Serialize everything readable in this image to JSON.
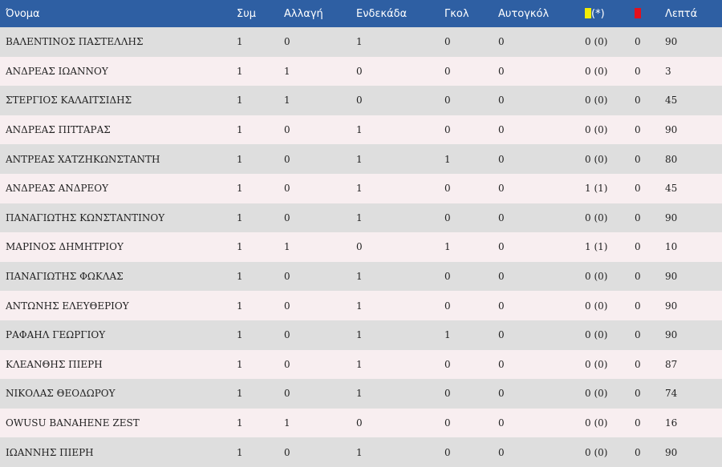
{
  "colors": {
    "header_bg": "#2e5fa3",
    "row_odd": "#dedede",
    "row_even": "#f8eef0",
    "yellow_card": "#f2ec05",
    "red_card": "#e3101c"
  },
  "header": {
    "name": "Όνομα",
    "apps": "Συμ",
    "sub": "Αλλαγή",
    "starting": "Ενδεκάδα",
    "goals": "Γκολ",
    "own_goals": "Αυτογκόλ",
    "yellow_note": "(*)",
    "minutes": "Λεπτά"
  },
  "rows": [
    {
      "name": "ΒΑΛΕΝΤΙΝΟΣ ΠΑΣΤΕΛΛΗΣ",
      "apps": "1",
      "sub": "0",
      "starting": "1",
      "goals": "0",
      "own_goals": "0",
      "yellow": "0 (0)",
      "red": "0",
      "minutes": "90"
    },
    {
      "name": "ΑΝΔΡΕΑΣ ΙΩΑΝΝΟΥ",
      "apps": "1",
      "sub": "1",
      "starting": "0",
      "goals": "0",
      "own_goals": "0",
      "yellow": "0 (0)",
      "red": "0",
      "minutes": "3"
    },
    {
      "name": "ΣΤΕΡΓΙΟΣ ΚΑΛΑΙΤΣΙΔΗΣ",
      "apps": "1",
      "sub": "1",
      "starting": "0",
      "goals": "0",
      "own_goals": "0",
      "yellow": "0 (0)",
      "red": "0",
      "minutes": "45"
    },
    {
      "name": "ΑΝΔΡΕΑΣ ΠΙΤΤΑΡΑΣ",
      "apps": "1",
      "sub": "0",
      "starting": "1",
      "goals": "0",
      "own_goals": "0",
      "yellow": "0 (0)",
      "red": "0",
      "minutes": "90"
    },
    {
      "name": "ΑΝΤΡΕΑΣ ΧΑΤΖΗΚΩΝΣΤΑΝΤΗ",
      "apps": "1",
      "sub": "0",
      "starting": "1",
      "goals": "1",
      "own_goals": "0",
      "yellow": "0 (0)",
      "red": "0",
      "minutes": "80"
    },
    {
      "name": "ΑΝΔΡΕΑΣ ΑΝΔΡΕΟΥ",
      "apps": "1",
      "sub": "0",
      "starting": "1",
      "goals": "0",
      "own_goals": "0",
      "yellow": "1 (1)",
      "red": "0",
      "minutes": "45"
    },
    {
      "name": "ΠΑΝΑΓΙΩΤΗΣ ΚΩΝΣΤΑΝΤΙΝΟΥ",
      "apps": "1",
      "sub": "0",
      "starting": "1",
      "goals": "0",
      "own_goals": "0",
      "yellow": "0 (0)",
      "red": "0",
      "minutes": "90"
    },
    {
      "name": "ΜΑΡΙΝΟΣ ΔΗΜΗΤΡΙΟΥ",
      "apps": "1",
      "sub": "1",
      "starting": "0",
      "goals": "1",
      "own_goals": "0",
      "yellow": "1 (1)",
      "red": "0",
      "minutes": "10"
    },
    {
      "name": "ΠΑΝΑΓΙΩΤΗΣ ΦΩΚΛΑΣ",
      "apps": "1",
      "sub": "0",
      "starting": "1",
      "goals": "0",
      "own_goals": "0",
      "yellow": "0 (0)",
      "red": "0",
      "minutes": "90"
    },
    {
      "name": "ΑΝΤΩΝΗΣ ΕΛΕΥΘΕΡΙΟΥ",
      "apps": "1",
      "sub": "0",
      "starting": "1",
      "goals": "0",
      "own_goals": "0",
      "yellow": "0 (0)",
      "red": "0",
      "minutes": "90"
    },
    {
      "name": "ΡΑΦΑΗΛ ΓΕΩΡΓΙΟΥ",
      "apps": "1",
      "sub": "0",
      "starting": "1",
      "goals": "1",
      "own_goals": "0",
      "yellow": "0 (0)",
      "red": "0",
      "minutes": "90"
    },
    {
      "name": "ΚΛΕΑΝΘΗΣ ΠΙΕΡΗ",
      "apps": "1",
      "sub": "0",
      "starting": "1",
      "goals": "0",
      "own_goals": "0",
      "yellow": "0 (0)",
      "red": "0",
      "minutes": "87"
    },
    {
      "name": "ΝΙΚΟΛΑΣ ΘΕΟΔΩΡΟΥ",
      "apps": "1",
      "sub": "0",
      "starting": "1",
      "goals": "0",
      "own_goals": "0",
      "yellow": "0 (0)",
      "red": "0",
      "minutes": "74"
    },
    {
      "name": "OWUSU BANAHENE ZEST",
      "apps": "1",
      "sub": "1",
      "starting": "0",
      "goals": "0",
      "own_goals": "0",
      "yellow": "0 (0)",
      "red": "0",
      "minutes": "16"
    },
    {
      "name": "ΙΩΑΝΝΗΣ ΠΙΕΡΗ",
      "apps": "1",
      "sub": "0",
      "starting": "1",
      "goals": "0",
      "own_goals": "0",
      "yellow": "0 (0)",
      "red": "0",
      "minutes": "90"
    }
  ]
}
